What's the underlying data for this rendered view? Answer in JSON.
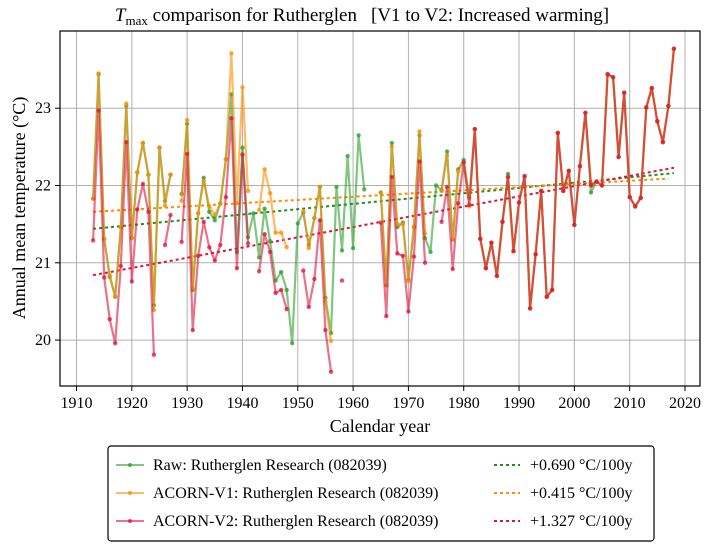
{
  "chart_data": {
    "type": "line",
    "title": {
      "symbol": "T",
      "subscript": "max",
      "text": " comparison for Rutherglen",
      "annotation": "[V1 to V2: Increased warming]"
    },
    "xlabel": "Calendar year",
    "ylabel": "Annual mean temperature (°C)",
    "xlim": [
      1907,
      2023
    ],
    "ylim": [
      19.4,
      24.0
    ],
    "xticks": [
      1910,
      1920,
      1930,
      1940,
      1950,
      1960,
      1970,
      1980,
      1990,
      2000,
      2010,
      2020
    ],
    "yticks": [
      20,
      21,
      22,
      23
    ],
    "grid": true,
    "legend_position": "bottom-center-outside",
    "series": [
      {
        "name": "Raw: Rutherglen Research (082039)",
        "color": "#2ca02c",
        "x": [
          1913,
          1914,
          1915,
          1916,
          1917,
          1918,
          1919,
          1920,
          1921,
          1922,
          1923,
          1924,
          1925,
          1926,
          1927,
          null,
          1929,
          1930,
          1931,
          1932,
          1933,
          1934,
          1935,
          1936,
          1937,
          1938,
          1939,
          1940,
          1941,
          1942,
          1943,
          1944,
          1945,
          1946,
          1947,
          1948,
          1949,
          1950,
          1951,
          1952,
          1953,
          1954,
          1955,
          1956,
          1957,
          1958,
          1959,
          1960,
          1961,
          1962,
          null,
          1965,
          1966,
          1967,
          1968,
          1969,
          1970,
          1971,
          1972,
          1973,
          1974,
          1975,
          1976,
          1977,
          1978,
          1979,
          1980,
          1981,
          1982,
          1983,
          1984,
          1985,
          1986,
          1987,
          1988,
          1989,
          1990,
          1991,
          1992,
          1993,
          1994,
          1995,
          1996,
          1997,
          1998,
          1999,
          2000,
          2001,
          2002,
          2003,
          2004,
          2005,
          2006,
          2007,
          2008,
          2009,
          2010,
          2011,
          2012,
          2013,
          2014,
          2015,
          2016,
          2017,
          2018
        ],
        "y": [
          21.83,
          23.44,
          21.31,
          20.82,
          20.56,
          21.46,
          23.03,
          21.32,
          22.17,
          22.55,
          22.14,
          20.45,
          22.49,
          21.8,
          22.14,
          null,
          21.89,
          22.8,
          20.65,
          21.64,
          22.1,
          21.66,
          21.55,
          21.77,
          22.34,
          23.18,
          21.14,
          22.49,
          21.33,
          21.64,
          21.07,
          21.7,
          21.28,
          20.77,
          20.88,
          20.65,
          19.96,
          21.51,
          21.65,
          21.23,
          21.58,
          21.98,
          20.55,
          20.09,
          21.98,
          21.16,
          22.38,
          21.19,
          22.65,
          21.95,
          null,
          21.91,
          20.71,
          22.55,
          21.46,
          21.52,
          20.78,
          21.46,
          22.65,
          21.32,
          21.14,
          22.0,
          21.94,
          22.44,
          21.3,
          22.21,
          22.33,
          21.84,
          22.73,
          21.31,
          20.93,
          21.26,
          20.83,
          21.53,
          22.15,
          21.15,
          21.78,
          22.12,
          20.41,
          21.11,
          21.93,
          20.56,
          20.65,
          22.68,
          21.93,
          22.19,
          21.49,
          22.25,
          22.94,
          21.91,
          22.05,
          22.0,
          23.44,
          23.4,
          22.37,
          23.2,
          21.85,
          21.73,
          21.84,
          23.01,
          23.26,
          22.83,
          22.56,
          23.03,
          23.77
        ]
      },
      {
        "name": "ACORN-V1: Rutherglen Research (082039)",
        "color": "#ff8c00",
        "x": [
          1913,
          1914,
          1915,
          1916,
          1917,
          1918,
          1919,
          1920,
          1921,
          1922,
          1923,
          1924,
          1925,
          1926,
          1927,
          null,
          1929,
          1930,
          1931,
          1932,
          1933,
          1934,
          1935,
          1936,
          1937,
          1938,
          1939,
          1940,
          1941,
          null,
          1943,
          1944,
          1945,
          1946,
          1947,
          1948,
          null,
          1951,
          1952,
          1953,
          1954,
          1955,
          1956,
          null,
          1965,
          1966,
          1967,
          1968,
          1969,
          1970,
          1971,
          1972,
          1973,
          null,
          1976,
          1977,
          1978,
          1979,
          1980,
          1981,
          1982,
          1983,
          1984,
          1985,
          1986,
          1987,
          1988,
          1989,
          1990,
          1991,
          1992,
          1993,
          1994,
          1995,
          1996,
          1997,
          1998,
          1999,
          2000,
          2001,
          2002,
          2003,
          2004,
          2005,
          2006,
          2007,
          2008,
          2009,
          2010,
          2011,
          2012,
          2013,
          2014,
          2015,
          2016,
          2017,
          2018
        ],
        "y": [
          21.83,
          23.45,
          21.31,
          20.84,
          20.57,
          21.46,
          23.06,
          21.32,
          22.17,
          22.55,
          22.14,
          20.39,
          22.49,
          21.74,
          22.14,
          null,
          21.8,
          22.85,
          20.67,
          21.64,
          22.06,
          21.73,
          21.62,
          21.77,
          22.34,
          23.71,
          21.77,
          23.27,
          21.93,
          null,
          21.68,
          22.21,
          21.9,
          21.39,
          21.39,
          21.2,
          null,
          21.67,
          21.19,
          21.58,
          21.98,
          20.5,
          19.99,
          null,
          21.91,
          20.71,
          22.5,
          21.5,
          21.5,
          20.76,
          21.47,
          22.7,
          21.38,
          null,
          21.93,
          22.39,
          21.3,
          22.18,
          22.3,
          21.73,
          22.73,
          21.31,
          20.93,
          21.26,
          20.83,
          21.53,
          22.11,
          21.15,
          21.78,
          22.12,
          20.41,
          21.11,
          21.93,
          20.56,
          20.65,
          22.68,
          21.93,
          22.19,
          21.49,
          22.25,
          22.94,
          22.0,
          22.05,
          22.0,
          23.44,
          23.4,
          22.37,
          23.2,
          21.85,
          21.73,
          21.84,
          23.01,
          23.26,
          22.83,
          22.56,
          23.03,
          23.77
        ]
      },
      {
        "name": "ACORN-V2: Rutherglen Research (082039)",
        "color": "#dc143c",
        "x": [
          1913,
          1914,
          1915,
          1916,
          1917,
          1918,
          1919,
          1920,
          1921,
          1922,
          1923,
          1924,
          null,
          1926,
          1927,
          null,
          1929,
          1930,
          1931,
          1932,
          1933,
          1934,
          1935,
          1936,
          1937,
          1938,
          1939,
          1940,
          1941,
          null,
          1943,
          1944,
          1945,
          1946,
          1947,
          1948,
          null,
          1951,
          1952,
          1953,
          1954,
          1955,
          1956,
          null,
          1958,
          null,
          1965,
          1966,
          1967,
          1968,
          1969,
          1970,
          1971,
          1972,
          1973,
          null,
          1976,
          1977,
          1978,
          1979,
          1980,
          1981,
          1982,
          1983,
          1984,
          1985,
          1986,
          1987,
          1988,
          1989,
          1990,
          1991,
          1992,
          1993,
          1994,
          1995,
          1996,
          1997,
          1998,
          1999,
          2000,
          2001,
          2002,
          2003,
          2004,
          2005,
          2006,
          2007,
          2008,
          2009,
          2010,
          2011,
          2012,
          2013,
          2014,
          2015,
          2016,
          2017,
          2018
        ],
        "y": [
          21.29,
          22.97,
          20.81,
          20.27,
          19.96,
          20.96,
          22.56,
          20.76,
          21.69,
          22.02,
          21.66,
          19.81,
          null,
          21.23,
          21.62,
          null,
          21.27,
          22.41,
          20.13,
          21.09,
          21.53,
          21.2,
          21.03,
          21.23,
          21.85,
          22.87,
          20.93,
          22.4,
          21.25,
          null,
          20.89,
          21.37,
          21.14,
          20.61,
          20.65,
          20.4,
          null,
          20.9,
          20.43,
          20.79,
          21.55,
          20.13,
          19.59,
          null,
          20.77,
          null,
          21.52,
          20.31,
          22.11,
          21.12,
          21.09,
          20.37,
          21.08,
          22.31,
          21.0,
          null,
          21.53,
          21.98,
          20.92,
          21.77,
          22.3,
          21.75,
          22.73,
          21.31,
          20.93,
          21.26,
          20.83,
          21.53,
          22.11,
          21.15,
          21.78,
          22.12,
          20.41,
          21.11,
          21.93,
          20.56,
          20.65,
          22.68,
          21.93,
          22.19,
          21.49,
          22.25,
          22.94,
          22.0,
          22.05,
          22.0,
          23.44,
          23.4,
          22.37,
          23.2,
          21.85,
          21.73,
          21.84,
          23.01,
          23.26,
          22.83,
          22.56,
          23.03,
          23.77
        ]
      }
    ],
    "trends": [
      {
        "name": "+0.690 °C/100y",
        "series": "Raw",
        "color": "#228b22",
        "rate_per_100y": 0.69,
        "x": [
          1913,
          2018
        ],
        "y": [
          21.44,
          22.16
        ]
      },
      {
        "name": "+0.415 °C/100y",
        "series": "ACORN-V1",
        "color": "#ff8c00",
        "rate_per_100y": 0.415,
        "x": [
          1913,
          2017
        ],
        "y": [
          21.66,
          22.09
        ]
      },
      {
        "name": "+1.327 °C/100y",
        "series": "ACORN-V2",
        "color": "#dc143c",
        "rate_per_100y": 1.327,
        "x": [
          1913,
          2018
        ],
        "y": [
          20.84,
          22.23
        ]
      }
    ],
    "legend": {
      "entries": [
        "Raw: Rutherglen Research (082039)",
        "ACORN-V1: Rutherglen Research (082039)",
        "ACORN-V2: Rutherglen Research (082039)",
        "+0.690 °C/100y",
        "+0.415 °C/100y",
        "+1.327 °C/100y"
      ]
    }
  }
}
